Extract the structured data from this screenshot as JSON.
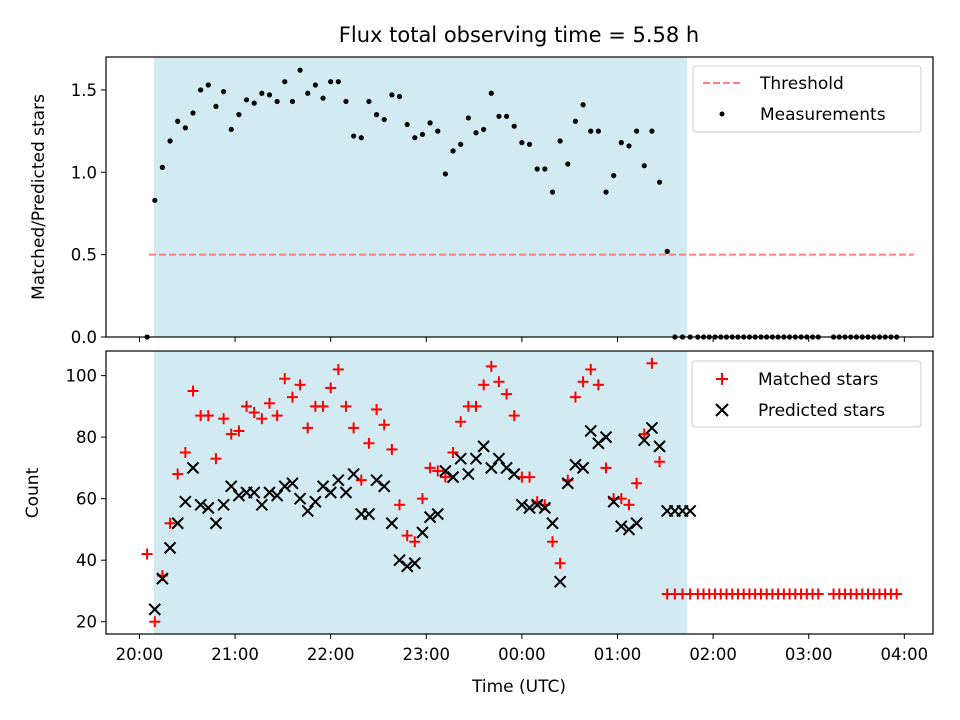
{
  "title": "Flux total observing time = 5.58 h",
  "xlabel": "Time (UTC)",
  "x_tick_labels": [
    "20:00",
    "21:00",
    "22:00",
    "23:00",
    "00:00",
    "01:00",
    "02:00",
    "03:00",
    "04:00"
  ],
  "colors": {
    "shade": "#add8e6",
    "threshold": "#ff7f7f",
    "measurements": "#000000",
    "matched": "#ff0000",
    "predicted": "#000000"
  },
  "chart_data": [
    {
      "type": "scatter",
      "ylabel": "Matched/Predicted stars",
      "xlim": [
        -0.35,
        8.3
      ],
      "ylim": [
        0,
        1.7
      ],
      "y_ticks": [
        "0.0",
        "0.5",
        "1.0",
        "1.5"
      ],
      "y_tick_values": [
        0,
        0.5,
        1.0,
        1.5
      ],
      "shaded_x_range": [
        0.15,
        5.73
      ],
      "legend": {
        "position": "upper right",
        "entries": [
          "Threshold",
          "Measurements"
        ]
      },
      "threshold": {
        "name": "Threshold",
        "y": 0.5,
        "x_range": [
          0.1,
          8.1
        ],
        "style": "dashed"
      },
      "series": [
        {
          "name": "Measurements",
          "marker": "dot",
          "x": [
            0.08,
            0.16,
            0.24,
            0.32,
            0.4,
            0.48,
            0.56,
            0.64,
            0.72,
            0.8,
            0.88,
            0.96,
            1.04,
            1.12,
            1.2,
            1.28,
            1.36,
            1.44,
            1.52,
            1.6,
            1.68,
            1.76,
            1.84,
            1.92,
            2.0,
            2.08,
            2.16,
            2.24,
            2.32,
            2.4,
            2.48,
            2.56,
            2.64,
            2.72,
            2.8,
            2.88,
            2.96,
            3.04,
            3.12,
            3.2,
            3.28,
            3.36,
            3.44,
            3.52,
            3.6,
            3.68,
            3.76,
            3.84,
            3.92,
            4.0,
            4.08,
            4.16,
            4.24,
            4.32,
            4.4,
            4.48,
            4.56,
            4.64,
            4.72,
            4.8,
            4.88,
            4.96,
            5.04,
            5.12,
            5.2,
            5.28,
            5.36,
            5.44,
            5.52,
            5.6,
            5.68,
            5.76,
            5.84,
            5.9,
            5.96,
            6.02,
            6.08,
            6.14,
            6.2,
            6.26,
            6.32,
            6.38,
            6.44,
            6.5,
            6.56,
            6.62,
            6.68,
            6.74,
            6.8,
            6.86,
            6.92,
            6.98,
            7.04,
            7.1,
            7.26,
            7.32,
            7.38,
            7.44,
            7.5,
            7.56,
            7.62,
            7.68,
            7.74,
            7.8,
            7.86,
            7.92
          ],
          "y": [
            0.0,
            0.83,
            1.03,
            1.19,
            1.31,
            1.27,
            1.36,
            1.5,
            1.53,
            1.4,
            1.49,
            1.26,
            1.35,
            1.44,
            1.42,
            1.48,
            1.47,
            1.43,
            1.55,
            1.43,
            1.62,
            1.48,
            1.53,
            1.45,
            1.55,
            1.55,
            1.43,
            1.22,
            1.21,
            1.43,
            1.35,
            1.32,
            1.47,
            1.46,
            1.29,
            1.21,
            1.23,
            1.3,
            1.25,
            0.99,
            1.13,
            1.17,
            1.33,
            1.24,
            1.26,
            1.48,
            1.34,
            1.34,
            1.28,
            1.18,
            1.17,
            1.02,
            1.02,
            0.88,
            1.19,
            1.05,
            1.31,
            1.41,
            1.25,
            1.25,
            0.88,
            0.98,
            1.18,
            1.16,
            1.25,
            1.04,
            1.25,
            0.94,
            0.52,
            0.0,
            0.0,
            0.0,
            0.0,
            0.0,
            0.0,
            0.0,
            0.0,
            0.0,
            0.0,
            0.0,
            0.0,
            0.0,
            0.0,
            0.0,
            0.0,
            0.0,
            0.0,
            0.0,
            0.0,
            0.0,
            0.0,
            0.0,
            0.0,
            0.0,
            0.0,
            0.0,
            0.0,
            0.0,
            0.0,
            0.0,
            0.0,
            0.0,
            0.0,
            0.0,
            0.0,
            0.0
          ]
        }
      ]
    },
    {
      "type": "scatter",
      "ylabel": "Count",
      "xlim": [
        -0.35,
        8.3
      ],
      "ylim": [
        16,
        108
      ],
      "y_ticks": [
        "20",
        "40",
        "60",
        "80",
        "100"
      ],
      "y_tick_values": [
        20,
        40,
        60,
        80,
        100
      ],
      "shaded_x_range": [
        0.15,
        5.73
      ],
      "legend": {
        "position": "upper right",
        "entries": [
          "Matched stars",
          "Predicted stars"
        ]
      },
      "series": [
        {
          "name": "Matched stars",
          "marker": "plus",
          "x": [
            0.08,
            0.16,
            0.24,
            0.32,
            0.4,
            0.48,
            0.56,
            0.64,
            0.72,
            0.8,
            0.88,
            0.96,
            1.04,
            1.12,
            1.2,
            1.28,
            1.36,
            1.44,
            1.52,
            1.6,
            1.68,
            1.76,
            1.84,
            1.92,
            2.0,
            2.08,
            2.16,
            2.24,
            2.32,
            2.4,
            2.48,
            2.56,
            2.64,
            2.72,
            2.8,
            2.88,
            2.96,
            3.04,
            3.12,
            3.2,
            3.28,
            3.36,
            3.44,
            3.52,
            3.6,
            3.68,
            3.76,
            3.84,
            3.92,
            4.0,
            4.08,
            4.16,
            4.24,
            4.32,
            4.4,
            4.48,
            4.56,
            4.64,
            4.72,
            4.8,
            4.88,
            4.96,
            5.04,
            5.12,
            5.2,
            5.28,
            5.36,
            5.44,
            5.52,
            5.6,
            5.68,
            5.76,
            5.84,
            5.9,
            5.96,
            6.02,
            6.08,
            6.14,
            6.2,
            6.26,
            6.32,
            6.38,
            6.44,
            6.5,
            6.56,
            6.62,
            6.68,
            6.74,
            6.8,
            6.86,
            6.92,
            6.98,
            7.04,
            7.1,
            7.26,
            7.32,
            7.38,
            7.44,
            7.5,
            7.56,
            7.62,
            7.68,
            7.74,
            7.8,
            7.86,
            7.92
          ],
          "y": [
            42,
            20,
            35,
            52,
            68,
            75,
            95,
            87,
            87,
            73,
            86,
            81,
            82,
            90,
            88,
            86,
            91,
            87,
            99,
            93,
            97,
            83,
            90,
            90,
            96,
            102,
            90,
            83,
            66,
            78,
            89,
            84,
            76,
            58,
            48,
            46,
            60,
            70,
            69,
            67,
            75,
            85,
            90,
            90,
            97,
            103,
            98,
            94,
            87,
            67,
            67,
            59,
            58,
            46,
            39,
            66,
            93,
            98,
            102,
            97,
            70,
            60,
            60,
            58,
            65,
            81,
            104,
            72,
            29,
            29,
            29,
            29,
            29,
            29,
            29,
            29,
            29,
            29,
            29,
            29,
            29,
            29,
            29,
            29,
            29,
            29,
            29,
            29,
            29,
            29,
            29,
            29,
            29,
            29,
            29,
            29,
            29,
            29,
            29,
            29,
            29,
            29,
            29,
            29,
            29,
            29
          ]
        },
        {
          "name": "Predicted stars",
          "marker": "x",
          "x": [
            0.16,
            0.24,
            0.32,
            0.4,
            0.48,
            0.56,
            0.64,
            0.72,
            0.8,
            0.88,
            0.96,
            1.04,
            1.12,
            1.2,
            1.28,
            1.36,
            1.44,
            1.52,
            1.6,
            1.68,
            1.76,
            1.84,
            1.92,
            2.0,
            2.08,
            2.16,
            2.24,
            2.32,
            2.4,
            2.48,
            2.56,
            2.64,
            2.72,
            2.8,
            2.88,
            2.96,
            3.04,
            3.12,
            3.2,
            3.28,
            3.36,
            3.44,
            3.52,
            3.6,
            3.68,
            3.76,
            3.84,
            3.92,
            4.0,
            4.08,
            4.16,
            4.24,
            4.32,
            4.4,
            4.48,
            4.56,
            4.64,
            4.72,
            4.8,
            4.88,
            4.96,
            5.04,
            5.12,
            5.2,
            5.28,
            5.36,
            5.44,
            5.52,
            5.6,
            5.68,
            5.76
          ],
          "y": [
            24,
            34,
            44,
            52,
            59,
            70,
            58,
            57,
            52,
            58,
            64,
            61,
            62,
            62,
            58,
            62,
            61,
            64,
            65,
            60,
            56,
            59,
            64,
            62,
            66,
            62,
            68,
            55,
            55,
            66,
            64,
            52,
            40,
            38,
            39,
            49,
            54,
            55,
            69,
            67,
            73,
            68,
            73,
            77,
            70,
            73,
            70,
            68,
            58,
            57,
            58,
            57,
            52,
            33,
            65,
            71,
            70,
            82,
            78,
            80,
            59,
            51,
            50,
            52,
            79,
            83,
            77,
            56,
            56,
            56,
            56
          ]
        }
      ]
    }
  ]
}
